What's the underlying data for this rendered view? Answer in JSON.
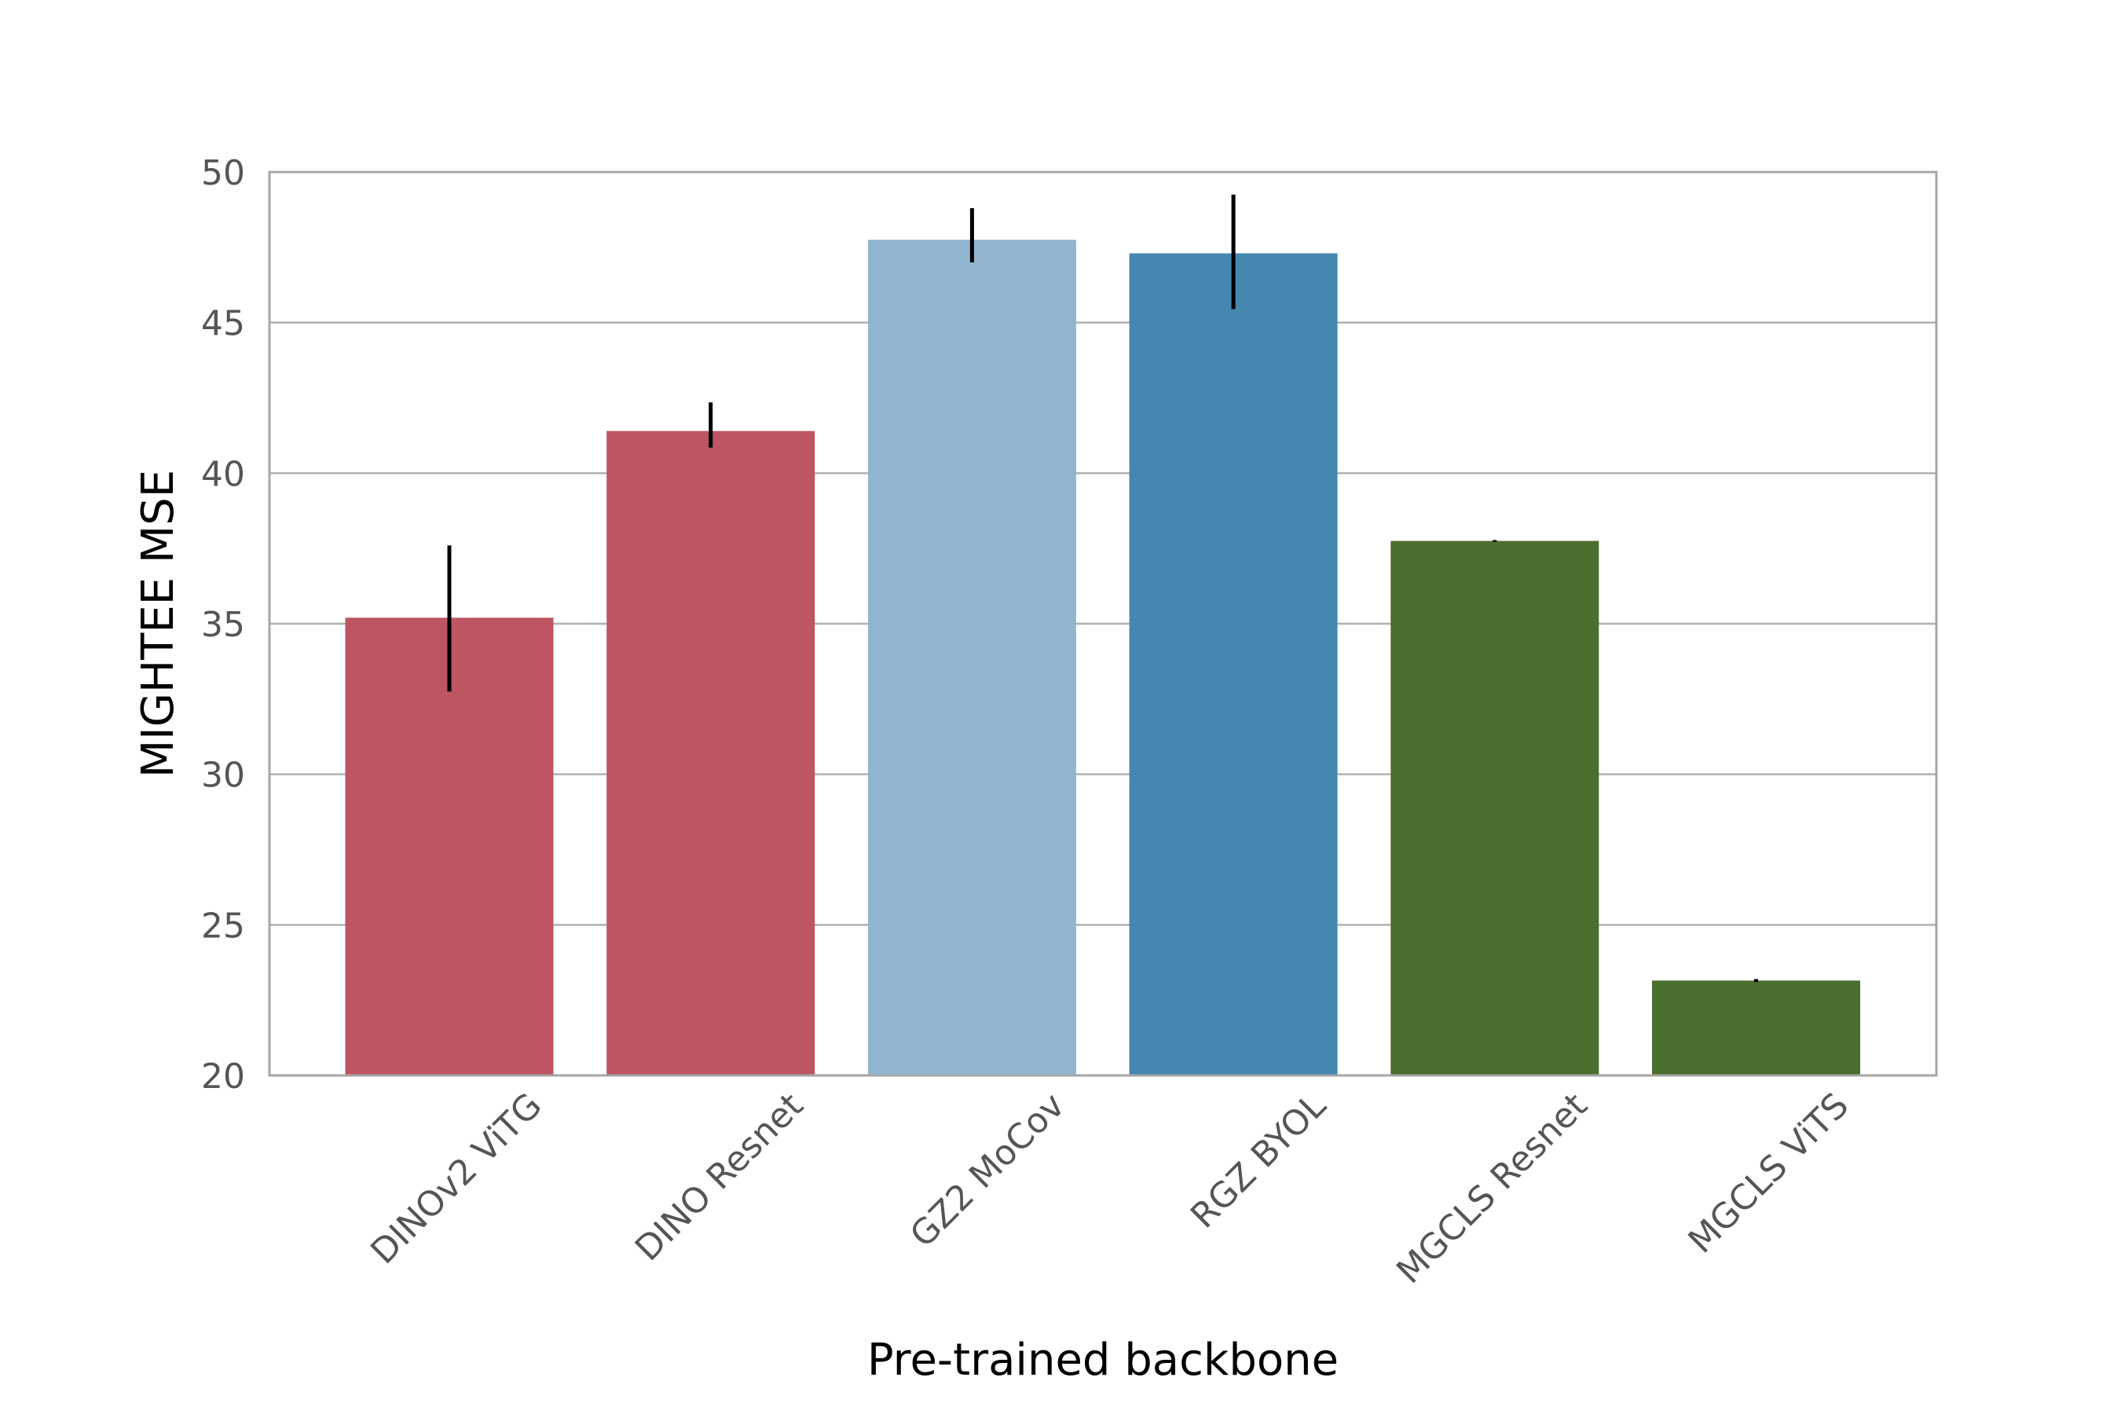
{
  "chart_data": {
    "type": "bar",
    "title": "",
    "xlabel": "Pre-trained backbone",
    "ylabel": "MIGHTEE MSE",
    "ylim": [
      20,
      50
    ],
    "yticks": [
      20,
      25,
      30,
      35,
      40,
      45,
      50
    ],
    "ytick_labels": [
      "20",
      "25",
      "30",
      "35",
      "40",
      "45",
      "50"
    ],
    "grid": "horizontal",
    "categories": [
      "DINOv2 ViTG",
      "DINO Resnet",
      "GZ2 MoCov",
      "RGZ BYOL",
      "MGCLS Resnet",
      "MGCLS ViTS"
    ],
    "values": [
      35.2,
      41.4,
      47.75,
      47.3,
      37.75,
      23.15
    ],
    "error_low": [
      32.75,
      40.85,
      47.0,
      45.45,
      37.72,
      23.1
    ],
    "error_high": [
      37.6,
      42.35,
      48.8,
      49.25,
      37.78,
      23.2
    ],
    "colors": [
      "#bd5563",
      "#bd5563",
      "#91b5cf",
      "#4587ae",
      "#4a6e2e",
      "#4a6e2e"
    ]
  }
}
